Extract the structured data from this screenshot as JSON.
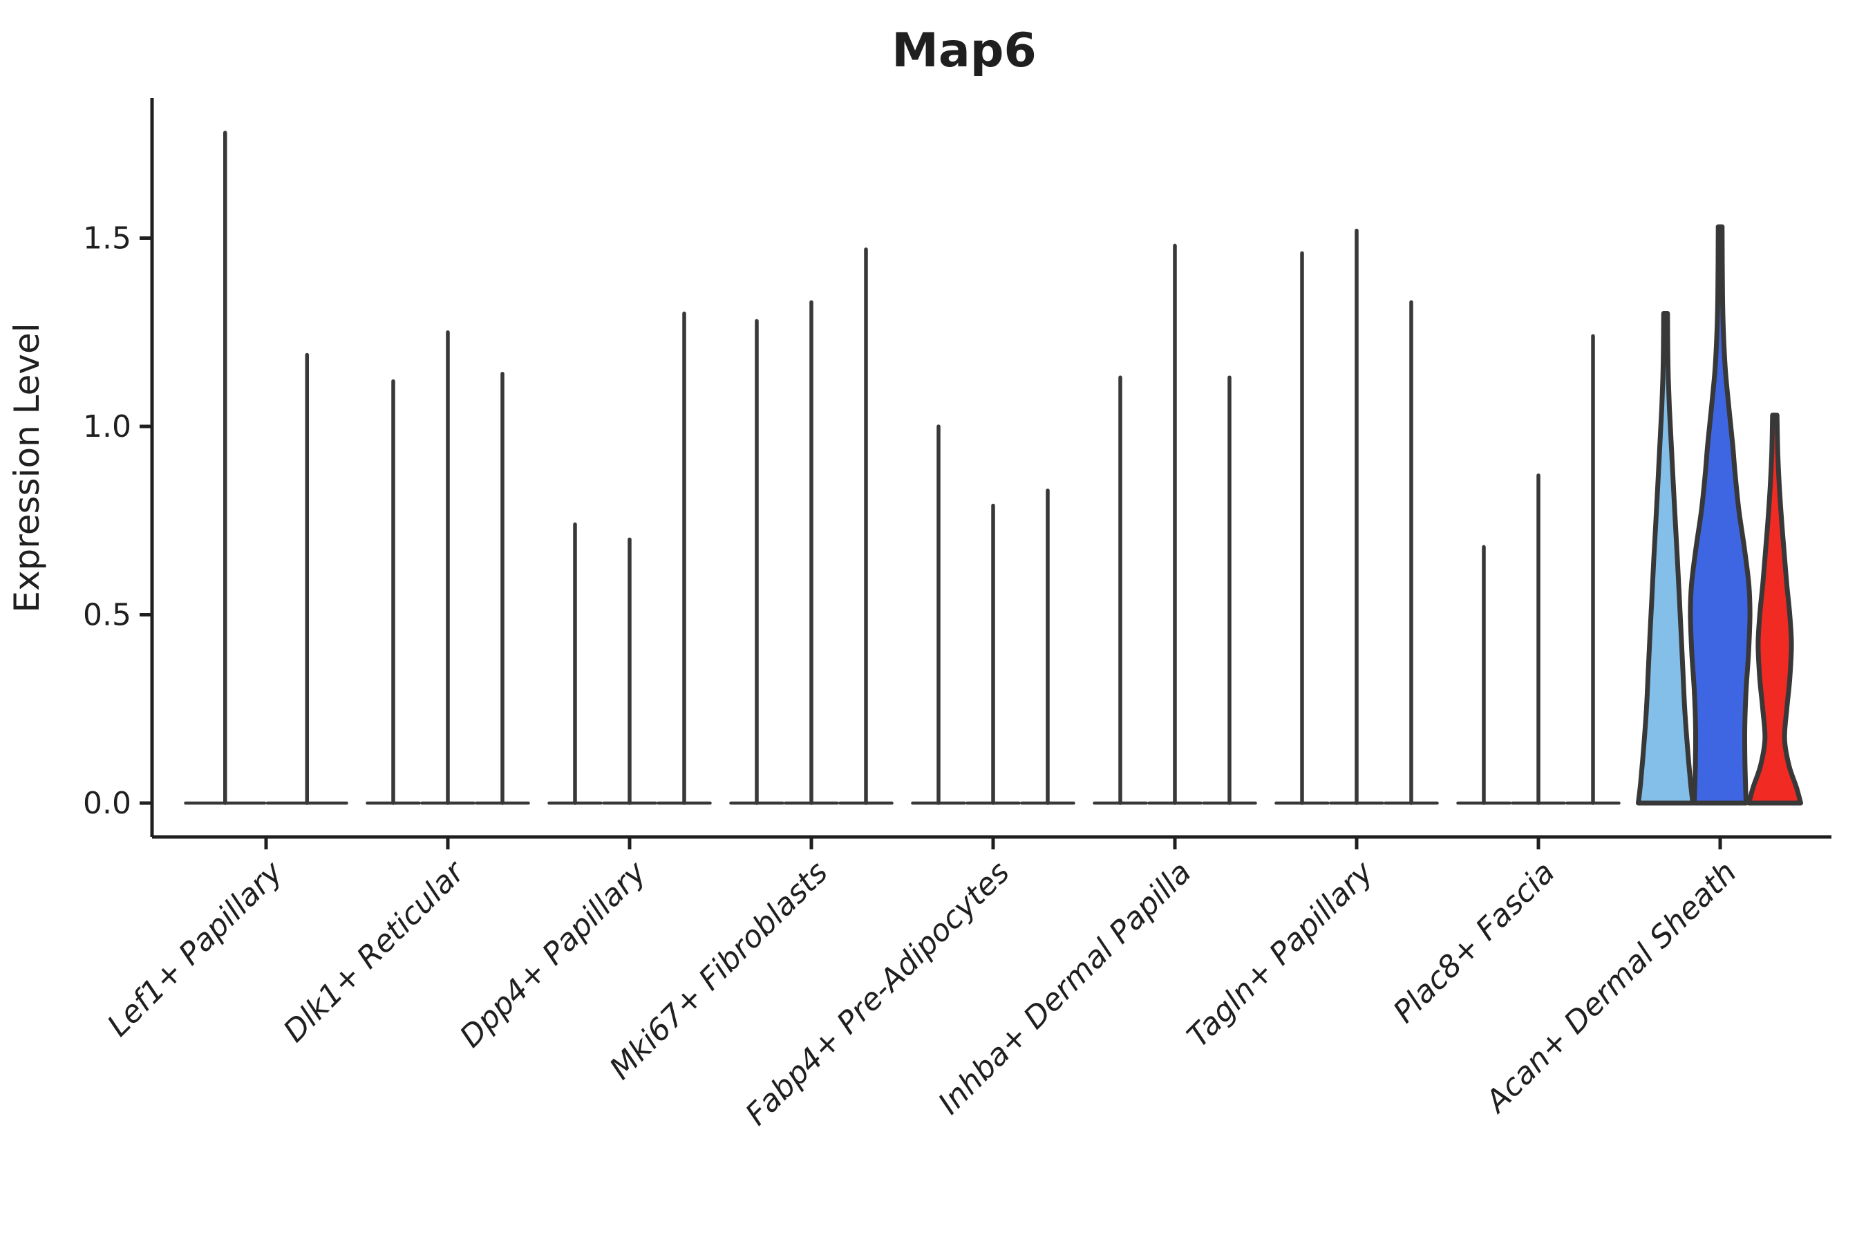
{
  "chart_data": {
    "type": "violin",
    "title": "Map6",
    "ylabel": "Expression Level",
    "xlabel": "",
    "ylim": [
      -0.09,
      1.87
    ],
    "yticks": {
      "values": [
        0.0,
        0.5,
        1.0,
        1.5
      ],
      "labels": [
        "0.0",
        "0.5",
        "1.0",
        "1.5"
      ]
    },
    "grid": false,
    "legend_position": "none",
    "categories": [
      {
        "label": "Lef1+ Papillary",
        "violins": [
          {
            "max": 1.78
          },
          {
            "max": 1.19
          }
        ]
      },
      {
        "label": "Dlk1+ Reticular",
        "violins": [
          {
            "max": 1.12
          },
          {
            "max": 1.25
          },
          {
            "max": 1.14
          }
        ]
      },
      {
        "label": "Dpp4+ Papillary",
        "violins": [
          {
            "max": 0.74
          },
          {
            "max": 0.7
          },
          {
            "max": 1.3
          }
        ]
      },
      {
        "label": "Mki67+ Fibroblasts",
        "violins": [
          {
            "max": 1.28
          },
          {
            "max": 1.33
          },
          {
            "max": 1.47
          }
        ]
      },
      {
        "label": "Fabp4+ Pre-Adipocytes",
        "violins": [
          {
            "max": 1.0
          },
          {
            "max": 0.79
          },
          {
            "max": 0.83
          }
        ]
      },
      {
        "label": "Inhba+ Dermal Papilla",
        "violins": [
          {
            "max": 1.13
          },
          {
            "max": 1.48
          },
          {
            "max": 1.13
          }
        ]
      },
      {
        "label": "Tagln+ Papillary",
        "violins": [
          {
            "max": 1.46
          },
          {
            "max": 1.52
          },
          {
            "max": 1.33
          }
        ]
      },
      {
        "label": "Plac8+ Fascia",
        "violins": [
          {
            "max": 0.68
          },
          {
            "max": 0.87
          },
          {
            "max": 1.24
          }
        ]
      },
      {
        "label": "Acan+ Dermal Sheath",
        "violins": [
          {
            "max": 1.3,
            "fill": "#83BFE8",
            "profile": [
              [
                0,
                1.0
              ],
              [
                0.05,
                0.92
              ],
              [
                0.15,
                0.8
              ],
              [
                0.25,
                0.7
              ],
              [
                0.35,
                0.635
              ],
              [
                0.45,
                0.57
              ],
              [
                0.55,
                0.5
              ],
              [
                0.65,
                0.43
              ],
              [
                0.75,
                0.355
              ],
              [
                0.85,
                0.28
              ],
              [
                0.95,
                0.21
              ],
              [
                1.05,
                0.14
              ],
              [
                1.13,
                0.1
              ],
              [
                1.2,
                0.08
              ],
              [
                1.3,
                0.07
              ]
            ]
          },
          {
            "max": 1.53,
            "fill": "#3E66E3",
            "profile": [
              [
                0,
                0.95
              ],
              [
                0.1,
                0.91
              ],
              [
                0.2,
                0.9
              ],
              [
                0.3,
                0.95
              ],
              [
                0.4,
                1.04
              ],
              [
                0.5,
                1.09
              ],
              [
                0.58,
                1.05
              ],
              [
                0.68,
                0.88
              ],
              [
                0.78,
                0.68
              ],
              [
                0.88,
                0.54
              ],
              [
                0.95,
                0.46
              ],
              [
                1.05,
                0.32
              ],
              [
                1.15,
                0.19
              ],
              [
                1.25,
                0.12
              ],
              [
                1.35,
                0.085
              ],
              [
                1.53,
                0.07
              ]
            ]
          },
          {
            "max": 1.03,
            "fill": "#F12B23",
            "profile": [
              [
                0,
                0.95
              ],
              [
                0.04,
                0.8
              ],
              [
                0.1,
                0.52
              ],
              [
                0.17,
                0.36
              ],
              [
                0.25,
                0.44
              ],
              [
                0.33,
                0.55
              ],
              [
                0.42,
                0.61
              ],
              [
                0.5,
                0.55
              ],
              [
                0.58,
                0.44
              ],
              [
                0.66,
                0.35
              ],
              [
                0.75,
                0.25
              ],
              [
                0.85,
                0.16
              ],
              [
                0.93,
                0.11
              ],
              [
                1.03,
                0.08
              ]
            ]
          }
        ]
      }
    ],
    "colors": {
      "violin_line": "#383838",
      "axis": "#1f1f1f"
    }
  }
}
